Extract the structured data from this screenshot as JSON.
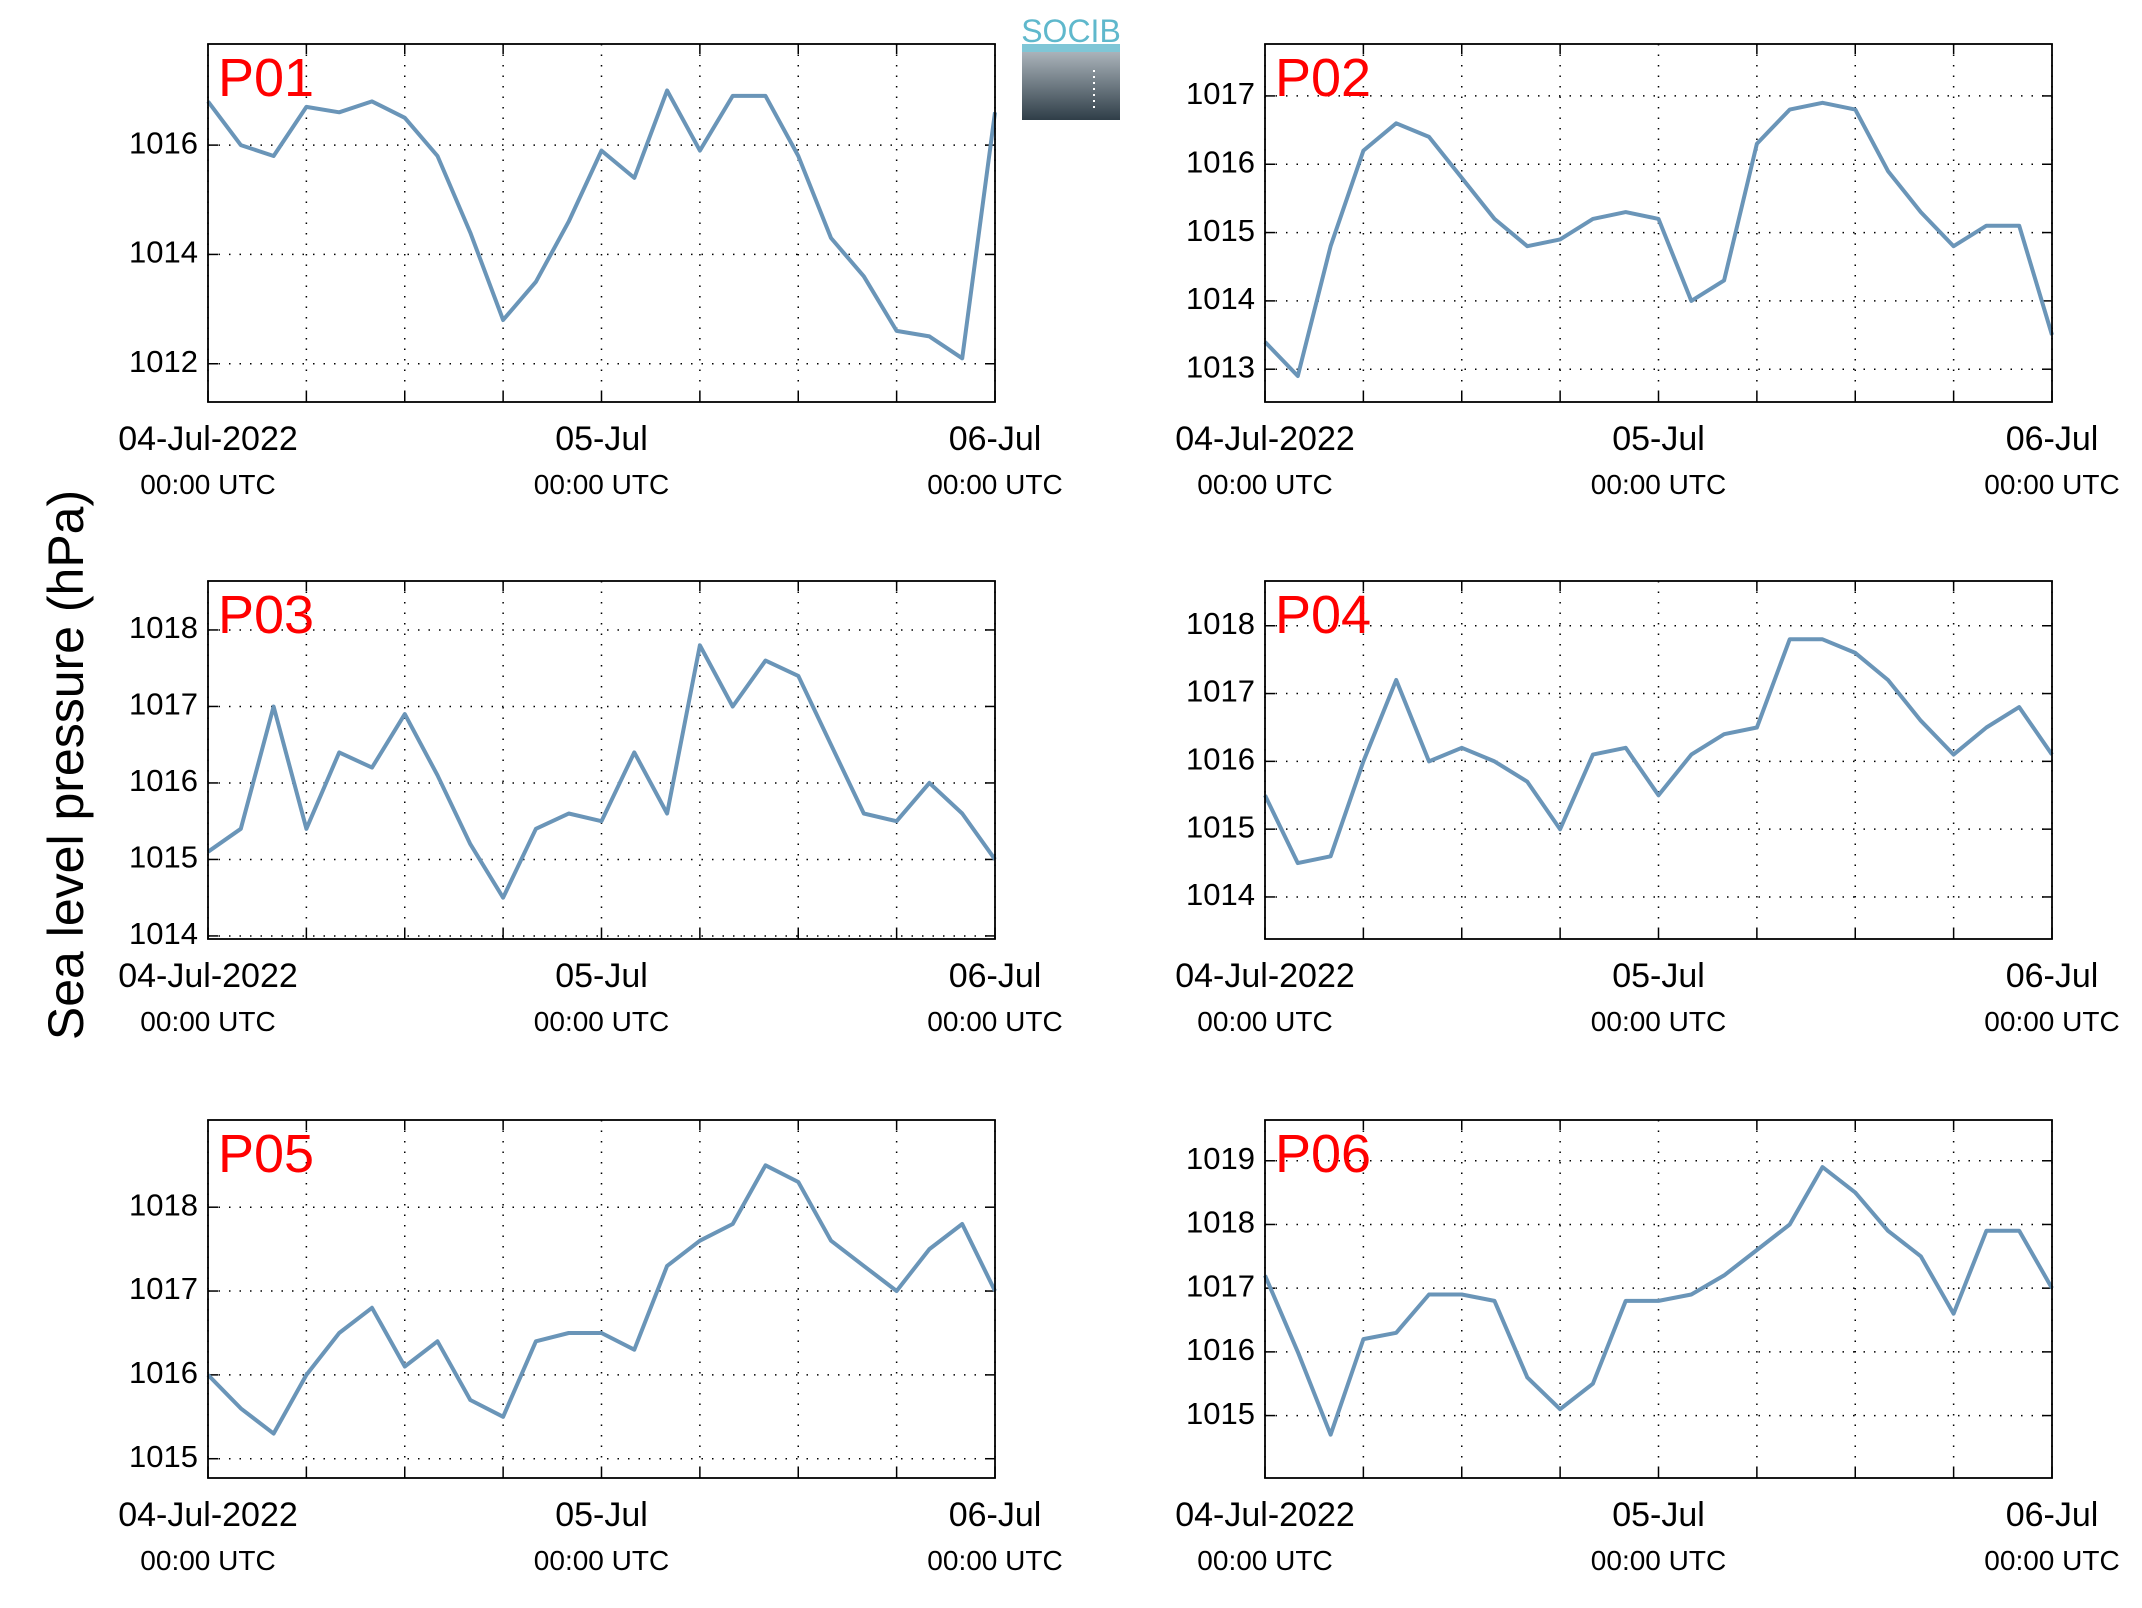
{
  "ylabel": "Sea level pressure (hPa)",
  "logo": "SOCIB",
  "chart_data": [
    {
      "type": "line",
      "title": "P01",
      "xlim": [
        "2022-07-04T00:00",
        "2022-07-06T00:00"
      ],
      "xticks": [
        {
          "value": "2022-07-04T00:00",
          "label": [
            "04-Jul-2022",
            "00:00 UTC"
          ]
        },
        {
          "value": "2022-07-05T00:00",
          "label": [
            "05-Jul",
            "00:00 UTC"
          ]
        },
        {
          "value": "2022-07-06T00:00",
          "label": [
            "06-Jul",
            "00:00 UTC"
          ]
        }
      ],
      "xgrid": [
        "2022-07-04T06:00",
        "2022-07-04T12:00",
        "2022-07-04T18:00",
        "2022-07-05T06:00",
        "2022-07-05T12:00",
        "2022-07-05T18:00"
      ],
      "ylim": [
        1011.3,
        1017.85
      ],
      "yticks": [
        1012,
        1014,
        1016
      ],
      "grid": true,
      "x": [
        "2022-07-04T00:00",
        "2022-07-04T02:00",
        "2022-07-04T04:00",
        "2022-07-04T06:00",
        "2022-07-04T08:00",
        "2022-07-04T10:00",
        "2022-07-04T12:00",
        "2022-07-04T14:00",
        "2022-07-04T16:00",
        "2022-07-04T18:00",
        "2022-07-04T20:00",
        "2022-07-04T22:00",
        "2022-07-05T00:00",
        "2022-07-05T02:00",
        "2022-07-05T04:00",
        "2022-07-05T06:00",
        "2022-07-05T08:00",
        "2022-07-05T10:00",
        "2022-07-05T12:00",
        "2022-07-05T14:00",
        "2022-07-05T16:00",
        "2022-07-05T18:00",
        "2022-07-05T20:00",
        "2022-07-05T22:00",
        "2022-07-06T00:00"
      ],
      "series": [
        {
          "color": "#6a95b8",
          "values": [
            1016.8,
            1016.0,
            1015.8,
            1016.7,
            1016.6,
            1016.8,
            1016.5,
            1015.8,
            1014.4,
            1012.8,
            1013.5,
            1014.6,
            1015.9,
            1015.4,
            1017.0,
            1015.9,
            1016.9,
            1016.9,
            1015.8,
            1014.3,
            1013.6,
            1012.6,
            1012.5,
            1012.1,
            1016.6
          ]
        }
      ]
    },
    {
      "type": "line",
      "title": "P02",
      "xlim": [
        "2022-07-04T00:00",
        "2022-07-06T00:00"
      ],
      "xticks": [
        {
          "value": "2022-07-04T00:00",
          "label": [
            "04-Jul-2022",
            "00:00 UTC"
          ]
        },
        {
          "value": "2022-07-05T00:00",
          "label": [
            "05-Jul",
            "00:00 UTC"
          ]
        },
        {
          "value": "2022-07-06T00:00",
          "label": [
            "06-Jul",
            "00:00 UTC"
          ]
        }
      ],
      "xgrid": [
        "2022-07-04T06:00",
        "2022-07-04T12:00",
        "2022-07-04T18:00",
        "2022-07-05T06:00",
        "2022-07-05T12:00",
        "2022-07-05T18:00"
      ],
      "ylim": [
        1012.52,
        1017.76
      ],
      "yticks": [
        1013,
        1014,
        1015,
        1016,
        1017
      ],
      "grid": true,
      "x": [
        "2022-07-04T00:00",
        "2022-07-04T02:00",
        "2022-07-04T04:00",
        "2022-07-04T06:00",
        "2022-07-04T08:00",
        "2022-07-04T10:00",
        "2022-07-04T12:00",
        "2022-07-04T14:00",
        "2022-07-04T16:00",
        "2022-07-04T18:00",
        "2022-07-04T20:00",
        "2022-07-04T22:00",
        "2022-07-05T00:00",
        "2022-07-05T02:00",
        "2022-07-05T04:00",
        "2022-07-05T06:00",
        "2022-07-05T08:00",
        "2022-07-05T10:00",
        "2022-07-05T12:00",
        "2022-07-05T14:00",
        "2022-07-05T16:00",
        "2022-07-05T18:00",
        "2022-07-05T20:00",
        "2022-07-05T22:00",
        "2022-07-06T00:00"
      ],
      "series": [
        {
          "color": "#6a95b8",
          "values": [
            1013.4,
            1012.9,
            1014.8,
            1016.2,
            1016.6,
            1016.4,
            1015.8,
            1015.2,
            1014.8,
            1014.9,
            1015.2,
            1015.3,
            1015.2,
            1014.0,
            1014.3,
            1016.3,
            1016.8,
            1016.9,
            1016.8,
            1015.9,
            1015.3,
            1014.8,
            1015.1,
            1015.1,
            1013.5
          ]
        }
      ]
    },
    {
      "type": "line",
      "title": "P03",
      "xlim": [
        "2022-07-04T00:00",
        "2022-07-06T00:00"
      ],
      "xticks": [
        {
          "value": "2022-07-04T00:00",
          "label": [
            "04-Jul-2022",
            "00:00 UTC"
          ]
        },
        {
          "value": "2022-07-05T00:00",
          "label": [
            "05-Jul",
            "00:00 UTC"
          ]
        },
        {
          "value": "2022-07-06T00:00",
          "label": [
            "06-Jul",
            "00:00 UTC"
          ]
        }
      ],
      "xgrid": [
        "2022-07-04T06:00",
        "2022-07-04T12:00",
        "2022-07-04T18:00",
        "2022-07-05T06:00",
        "2022-07-05T12:00",
        "2022-07-05T18:00"
      ],
      "ylim": [
        1013.96,
        1018.64
      ],
      "yticks": [
        1014,
        1015,
        1016,
        1017,
        1018
      ],
      "grid": true,
      "x": [
        "2022-07-04T00:00",
        "2022-07-04T02:00",
        "2022-07-04T04:00",
        "2022-07-04T06:00",
        "2022-07-04T08:00",
        "2022-07-04T10:00",
        "2022-07-04T12:00",
        "2022-07-04T14:00",
        "2022-07-04T16:00",
        "2022-07-04T18:00",
        "2022-07-04T20:00",
        "2022-07-04T22:00",
        "2022-07-05T00:00",
        "2022-07-05T02:00",
        "2022-07-05T04:00",
        "2022-07-05T06:00",
        "2022-07-05T08:00",
        "2022-07-05T10:00",
        "2022-07-05T12:00",
        "2022-07-05T14:00",
        "2022-07-05T16:00",
        "2022-07-05T18:00",
        "2022-07-05T20:00",
        "2022-07-05T22:00",
        "2022-07-06T00:00"
      ],
      "series": [
        {
          "color": "#6a95b8",
          "values": [
            1015.1,
            1015.4,
            1017.0,
            1015.4,
            1016.4,
            1016.2,
            1016.9,
            1016.1,
            1015.2,
            1014.5,
            1015.4,
            1015.6,
            1015.5,
            1016.4,
            1015.6,
            1017.8,
            1017.0,
            1017.6,
            1017.4,
            1016.5,
            1015.6,
            1015.5,
            1016.0,
            1015.6,
            1015.0
          ]
        }
      ]
    },
    {
      "type": "line",
      "title": "P04",
      "xlim": [
        "2022-07-04T00:00",
        "2022-07-06T00:00"
      ],
      "xticks": [
        {
          "value": "2022-07-04T00:00",
          "label": [
            "04-Jul-2022",
            "00:00 UTC"
          ]
        },
        {
          "value": "2022-07-05T00:00",
          "label": [
            "05-Jul",
            "00:00 UTC"
          ]
        },
        {
          "value": "2022-07-06T00:00",
          "label": [
            "06-Jul",
            "00:00 UTC"
          ]
        }
      ],
      "xgrid": [
        "2022-07-04T06:00",
        "2022-07-04T12:00",
        "2022-07-04T18:00",
        "2022-07-05T06:00",
        "2022-07-05T12:00",
        "2022-07-05T18:00"
      ],
      "ylim": [
        1013.38,
        1018.66
      ],
      "yticks": [
        1014,
        1015,
        1016,
        1017,
        1018
      ],
      "grid": true,
      "x": [
        "2022-07-04T00:00",
        "2022-07-04T02:00",
        "2022-07-04T04:00",
        "2022-07-04T06:00",
        "2022-07-04T08:00",
        "2022-07-04T10:00",
        "2022-07-04T12:00",
        "2022-07-04T14:00",
        "2022-07-04T16:00",
        "2022-07-04T18:00",
        "2022-07-04T20:00",
        "2022-07-04T22:00",
        "2022-07-05T00:00",
        "2022-07-05T02:00",
        "2022-07-05T04:00",
        "2022-07-05T06:00",
        "2022-07-05T08:00",
        "2022-07-05T10:00",
        "2022-07-05T12:00",
        "2022-07-05T14:00",
        "2022-07-05T16:00",
        "2022-07-05T18:00",
        "2022-07-05T20:00",
        "2022-07-05T22:00",
        "2022-07-06T00:00"
      ],
      "series": [
        {
          "color": "#6a95b8",
          "values": [
            1015.5,
            1014.5,
            1014.6,
            1016.0,
            1017.2,
            1016.0,
            1016.2,
            1016.0,
            1015.7,
            1015.0,
            1016.1,
            1016.2,
            1015.5,
            1016.1,
            1016.4,
            1016.5,
            1017.8,
            1017.8,
            1017.6,
            1017.2,
            1016.6,
            1016.1,
            1016.5,
            1016.8,
            1016.1
          ]
        }
      ]
    },
    {
      "type": "line",
      "title": "P05",
      "xlim": [
        "2022-07-04T00:00",
        "2022-07-06T00:00"
      ],
      "xticks": [
        {
          "value": "2022-07-04T00:00",
          "label": [
            "04-Jul-2022",
            "00:00 UTC"
          ]
        },
        {
          "value": "2022-07-05T00:00",
          "label": [
            "05-Jul",
            "00:00 UTC"
          ]
        },
        {
          "value": "2022-07-06T00:00",
          "label": [
            "06-Jul",
            "00:00 UTC"
          ]
        }
      ],
      "xgrid": [
        "2022-07-04T06:00",
        "2022-07-04T12:00",
        "2022-07-04T18:00",
        "2022-07-05T06:00",
        "2022-07-05T12:00",
        "2022-07-05T18:00"
      ],
      "ylim": [
        1014.77,
        1019.04
      ],
      "yticks": [
        1015,
        1016,
        1017,
        1018
      ],
      "grid": true,
      "x": [
        "2022-07-04T00:00",
        "2022-07-04T02:00",
        "2022-07-04T04:00",
        "2022-07-04T06:00",
        "2022-07-04T08:00",
        "2022-07-04T10:00",
        "2022-07-04T12:00",
        "2022-07-04T14:00",
        "2022-07-04T16:00",
        "2022-07-04T18:00",
        "2022-07-04T20:00",
        "2022-07-04T22:00",
        "2022-07-05T00:00",
        "2022-07-05T02:00",
        "2022-07-05T04:00",
        "2022-07-05T06:00",
        "2022-07-05T08:00",
        "2022-07-05T10:00",
        "2022-07-05T12:00",
        "2022-07-05T14:00",
        "2022-07-05T16:00",
        "2022-07-05T18:00",
        "2022-07-05T20:00",
        "2022-07-05T22:00",
        "2022-07-06T00:00"
      ],
      "series": [
        {
          "color": "#6a95b8",
          "values": [
            1016.0,
            1015.6,
            1015.3,
            1016.0,
            1016.5,
            1016.8,
            1016.1,
            1016.4,
            1015.7,
            1015.5,
            1016.4,
            1016.5,
            1016.5,
            1016.3,
            1017.3,
            1017.6,
            1017.8,
            1018.5,
            1018.3,
            1017.6,
            1017.3,
            1017.0,
            1017.5,
            1017.8,
            1017.0
          ]
        }
      ]
    },
    {
      "type": "line",
      "title": "P06",
      "xlim": [
        "2022-07-04T00:00",
        "2022-07-06T00:00"
      ],
      "xticks": [
        {
          "value": "2022-07-04T00:00",
          "label": [
            "04-Jul-2022",
            "00:00 UTC"
          ]
        },
        {
          "value": "2022-07-05T00:00",
          "label": [
            "05-Jul",
            "00:00 UTC"
          ]
        },
        {
          "value": "2022-07-06T00:00",
          "label": [
            "06-Jul",
            "00:00 UTC"
          ]
        }
      ],
      "xgrid": [
        "2022-07-04T06:00",
        "2022-07-04T12:00",
        "2022-07-04T18:00",
        "2022-07-05T06:00",
        "2022-07-05T12:00",
        "2022-07-05T18:00"
      ],
      "ylim": [
        1014.02,
        1019.64
      ],
      "yticks": [
        1015,
        1016,
        1017,
        1018,
        1019
      ],
      "grid": true,
      "x": [
        "2022-07-04T00:00",
        "2022-07-04T02:00",
        "2022-07-04T04:00",
        "2022-07-04T06:00",
        "2022-07-04T08:00",
        "2022-07-04T10:00",
        "2022-07-04T12:00",
        "2022-07-04T14:00",
        "2022-07-04T16:00",
        "2022-07-04T18:00",
        "2022-07-04T20:00",
        "2022-07-04T22:00",
        "2022-07-05T00:00",
        "2022-07-05T02:00",
        "2022-07-05T04:00",
        "2022-07-05T06:00",
        "2022-07-05T08:00",
        "2022-07-05T10:00",
        "2022-07-05T12:00",
        "2022-07-05T14:00",
        "2022-07-05T16:00",
        "2022-07-05T18:00",
        "2022-07-05T20:00",
        "2022-07-05T22:00",
        "2022-07-06T00:00"
      ],
      "series": [
        {
          "color": "#6a95b8",
          "values": [
            1017.2,
            1016.0,
            1014.7,
            1016.2,
            1016.3,
            1016.9,
            1016.9,
            1016.8,
            1015.6,
            1015.1,
            1015.5,
            1016.8,
            1016.8,
            1016.9,
            1017.2,
            1017.6,
            1018.0,
            1018.9,
            1018.5,
            1017.9,
            1017.5,
            1016.6,
            1017.9,
            1017.9,
            1017.0
          ]
        }
      ]
    }
  ]
}
